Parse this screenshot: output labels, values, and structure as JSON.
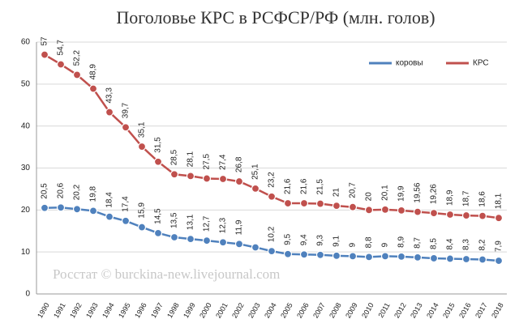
{
  "chart_data": {
    "type": "line",
    "title": "Поголовье КРС в РСФСР/РФ (млн. голов)",
    "annotation": "Росстат © burckina-new.livejournal.com",
    "categories": [
      "1990",
      "1991",
      "1992",
      "1993",
      "1994",
      "1995",
      "1996",
      "1997",
      "1998",
      "1999",
      "2000",
      "2001",
      "2002",
      "2003",
      "2004",
      "2005",
      "2006",
      "2007",
      "2008",
      "2009",
      "2010",
      "2011",
      "2012",
      "2013",
      "2014",
      "2015",
      "2016",
      "2017",
      "2018"
    ],
    "series": [
      {
        "name": "коровы",
        "color": "#4f81bd",
        "values": [
          20.5,
          20.6,
          20.2,
          19.8,
          18.4,
          17.4,
          15.9,
          14.5,
          13.5,
          13.1,
          12.7,
          12.3,
          11.9,
          11.1,
          10.2,
          9.5,
          9.4,
          9.3,
          9.1,
          9,
          8.8,
          9,
          8.9,
          8.7,
          8.5,
          8.4,
          8.3,
          8.2,
          7.9
        ],
        "value_labels": [
          "20,5",
          "20,6",
          "20,2",
          "19,8",
          "18,4",
          "17,4",
          "15,9",
          "14,5",
          "13,5",
          "13,1",
          "12,7",
          "12,3",
          "11,9",
          null,
          "10,2",
          "9,5",
          "9,4",
          "9,3",
          "9,1",
          "9",
          "8,8",
          "9",
          "8,9",
          "8,7",
          "8,5",
          "8,4",
          "8,3",
          "8,2",
          "7,9"
        ]
      },
      {
        "name": "КРС",
        "color": "#c0504d",
        "values": [
          57,
          54.7,
          52.2,
          48.9,
          43.3,
          39.7,
          35.1,
          31.5,
          28.5,
          28.1,
          27.5,
          27.4,
          26.8,
          25.1,
          23.2,
          21.6,
          21.6,
          21.5,
          21,
          20.7,
          20,
          20.1,
          19.9,
          19.56,
          19.26,
          18.9,
          18.7,
          18.6,
          18.1
        ],
        "value_labels": [
          "57",
          "54,7",
          "52,2",
          "48,9",
          "43,3",
          "39,7",
          "35,1",
          "31,5",
          "28,5",
          "28,1",
          "27,5",
          "27,4",
          "26,8",
          "25,1",
          "23,2",
          "21,6",
          "21,6",
          "21,5",
          "21",
          "20,7",
          "20",
          "20,1",
          "19,9",
          "19,56",
          "19,26",
          "18,9",
          "18,7",
          "18,6",
          "18,1"
        ]
      }
    ],
    "ylim": [
      0,
      60
    ],
    "yticks": [
      0,
      10,
      20,
      30,
      40,
      50,
      60
    ],
    "grid": true,
    "legend": "top-right"
  }
}
